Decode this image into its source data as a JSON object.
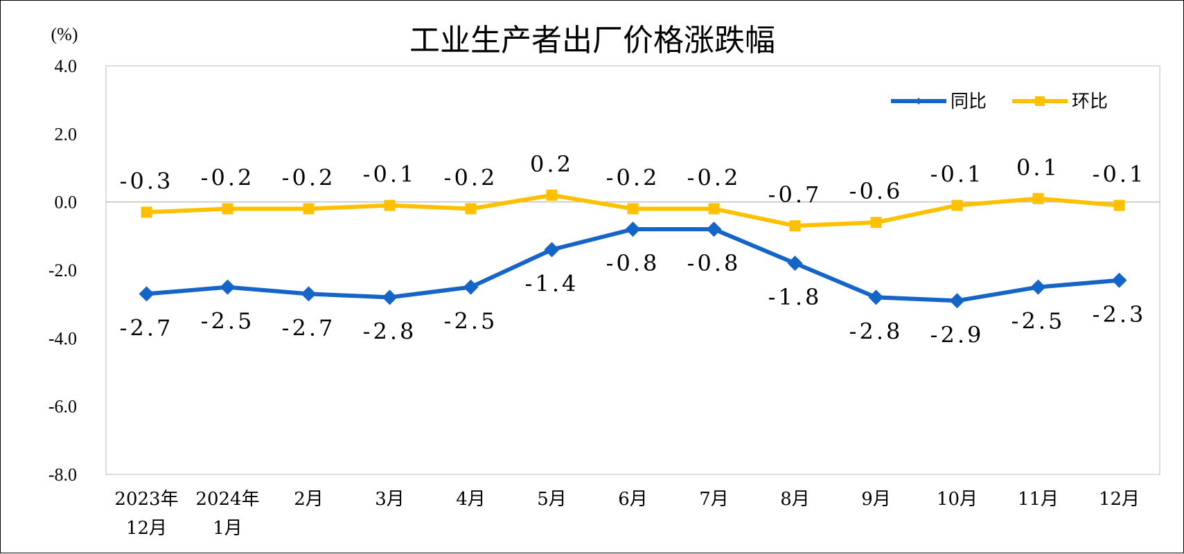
{
  "chart_data": {
    "type": "line",
    "title": "工业生产者出厂价格涨跌幅",
    "unit_label": "(%)",
    "ylim": [
      -8.0,
      4.0
    ],
    "yticks": [
      "4.0",
      "2.0",
      "0.0",
      "-2.0",
      "-4.0",
      "-6.0",
      "-8.0"
    ],
    "ytick_values": [
      4,
      2,
      0,
      -2,
      -4,
      -6,
      -8
    ],
    "categories": [
      [
        "2023年",
        "12月"
      ],
      [
        "2024年",
        "1月"
      ],
      [
        "2月"
      ],
      [
        "3月"
      ],
      [
        "4月"
      ],
      [
        "5月"
      ],
      [
        "6月"
      ],
      [
        "7月"
      ],
      [
        "8月"
      ],
      [
        "9月"
      ],
      [
        "10月"
      ],
      [
        "11月"
      ],
      [
        "12月"
      ]
    ],
    "legend_position": "top-right",
    "series": [
      {
        "name": "同比",
        "color": "#1565C8",
        "marker": "diamond",
        "values": [
          -2.7,
          -2.5,
          -2.7,
          -2.8,
          -2.5,
          -1.4,
          -0.8,
          -0.8,
          -1.8,
          -2.8,
          -2.9,
          -2.5,
          -2.3
        ],
        "labels": [
          "-2.7",
          "-2.5",
          "-2.7",
          "-2.8",
          "-2.5",
          "-1.4",
          "-0.8",
          "-0.8",
          "-1.8",
          "-2.8",
          "-2.9",
          "-2.5",
          "-2.3"
        ]
      },
      {
        "name": "环比",
        "color": "#FFC000",
        "marker": "square",
        "values": [
          -0.3,
          -0.2,
          -0.2,
          -0.1,
          -0.2,
          0.2,
          -0.2,
          -0.2,
          -0.7,
          -0.6,
          -0.1,
          0.1,
          -0.1
        ],
        "labels": [
          "-0.3",
          "-0.2",
          "-0.2",
          "-0.1",
          "-0.2",
          "0.2",
          "-0.2",
          "-0.2",
          "-0.7",
          "-0.6",
          "-0.1",
          "0.1",
          "-0.1"
        ]
      }
    ]
  }
}
